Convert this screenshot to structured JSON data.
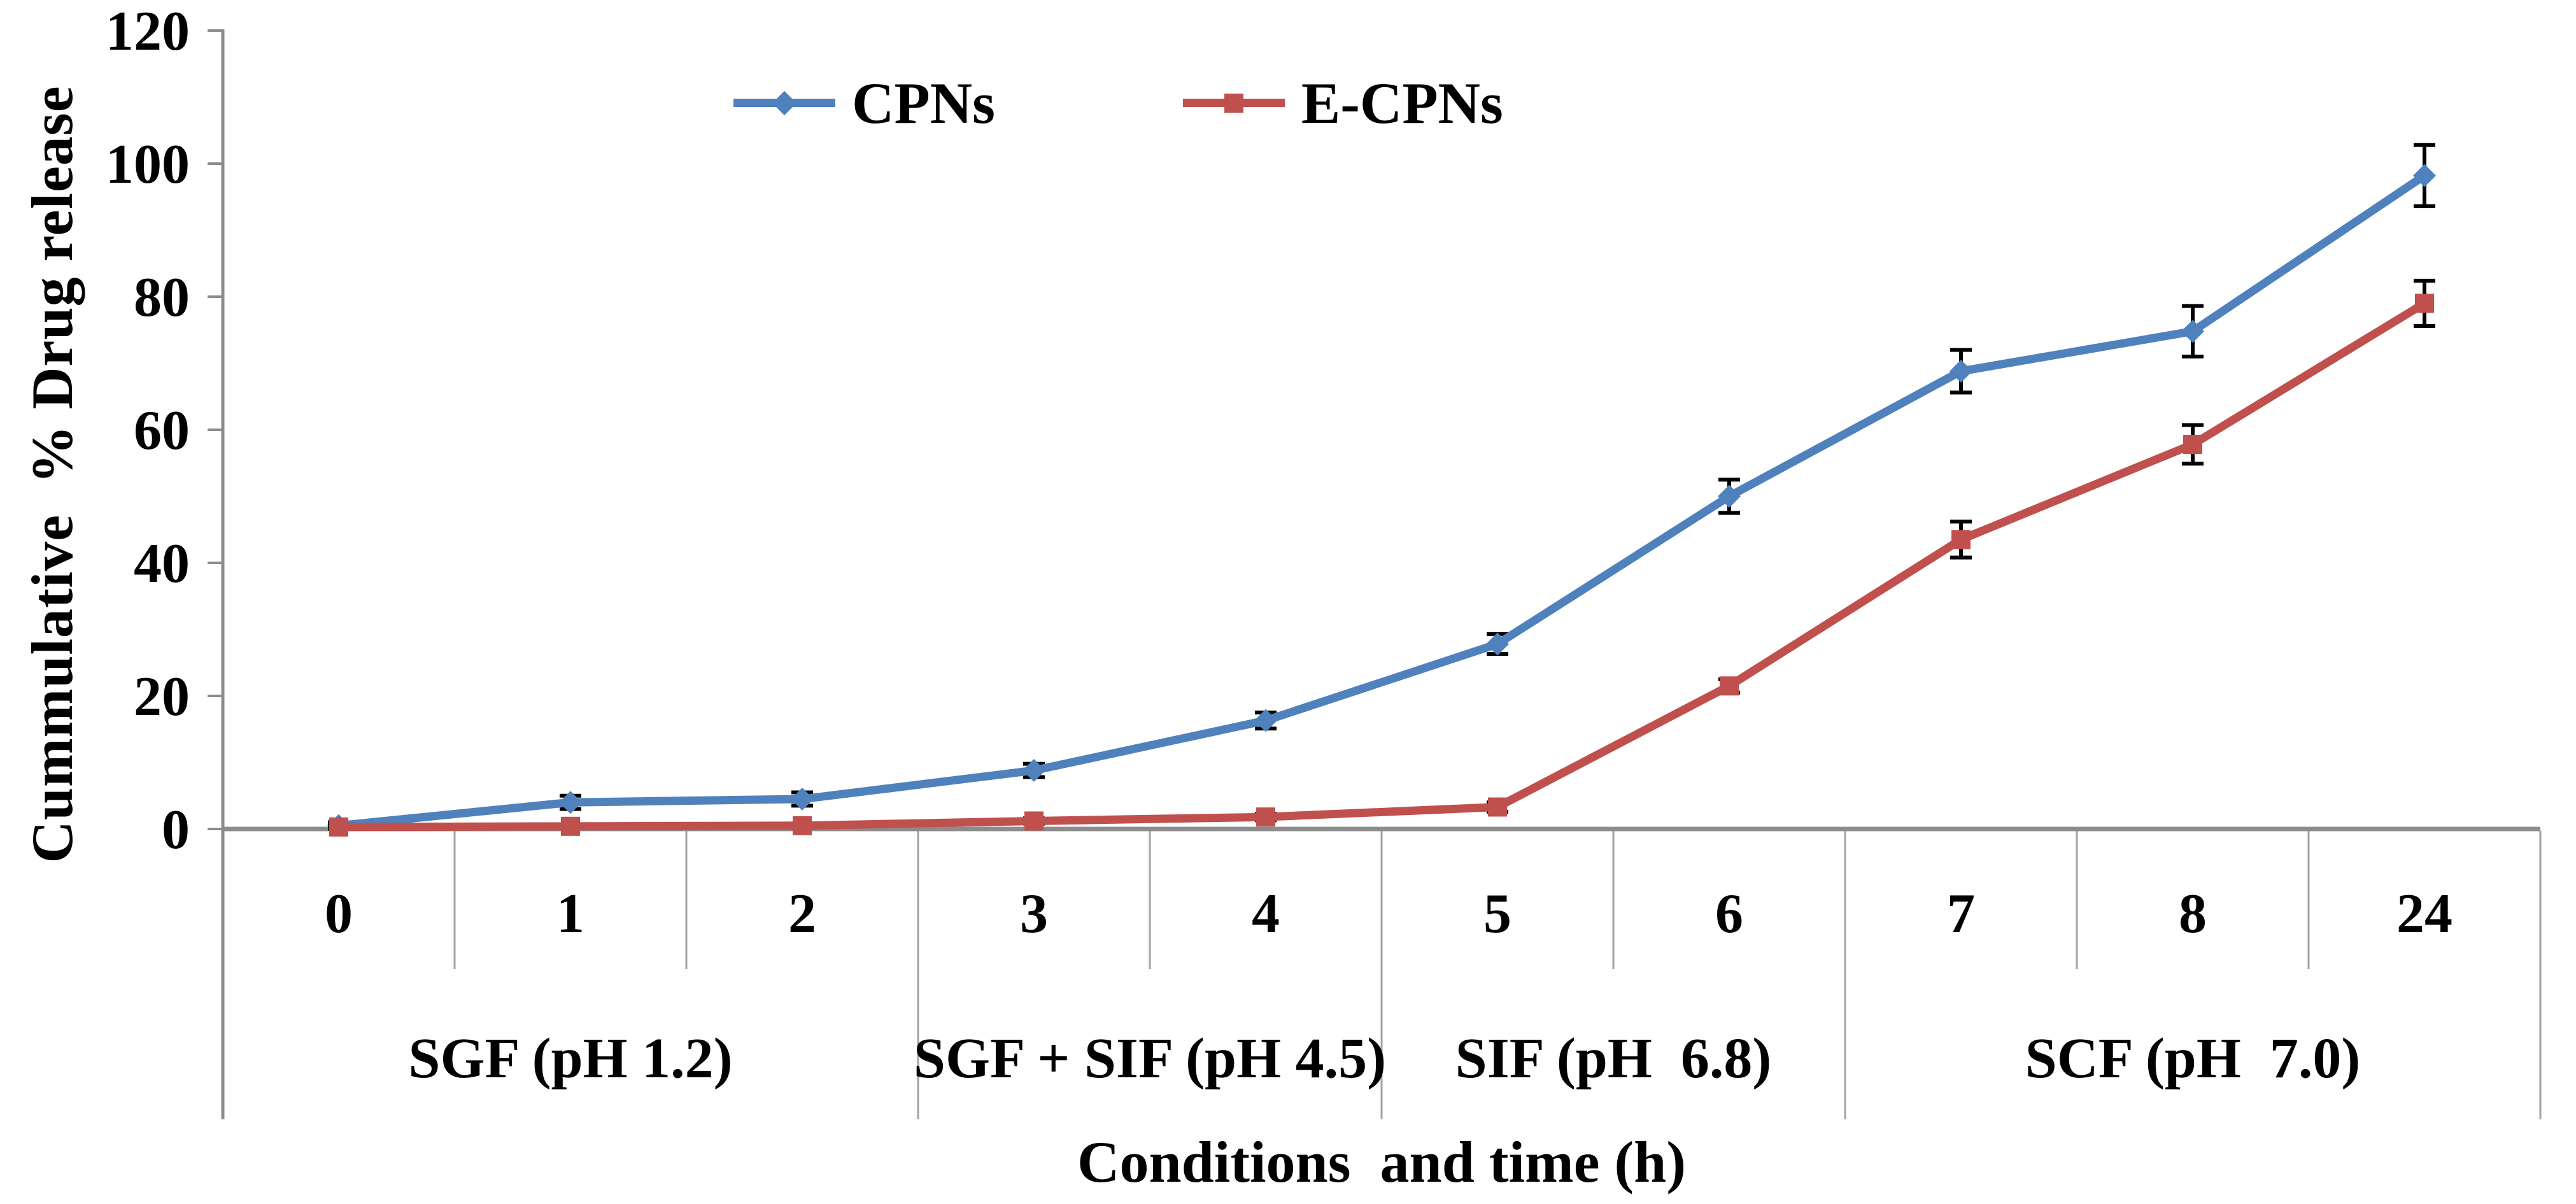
{
  "figure": {
    "background": "#ffffff"
  },
  "style": {
    "axis_color": "#8C8C8C",
    "separator_color": "#A3A3A3",
    "error_bar_color": "#000000",
    "text_color": "#000000"
  },
  "chart_data": {
    "type": "line",
    "title": "",
    "xlabel": "Conditions  and time (h)",
    "ylabel": "Cummulative  % Drug release",
    "categories": [
      "0",
      "1",
      "2",
      "3",
      "4",
      "5",
      "6",
      "7",
      "8",
      "24"
    ],
    "condition_groups": [
      {
        "label": "SGF (pH 1.2)",
        "span": [
          0,
          2
        ]
      },
      {
        "label": "SGF + SIF (pH 4.5)",
        "span": [
          3,
          4
        ]
      },
      {
        "label": "SIF (pH  6.8)",
        "span": [
          5,
          6
        ]
      },
      {
        "label": "SCF (pH  7.0)",
        "span": [
          7,
          9
        ]
      }
    ],
    "y_axis": {
      "min": 0,
      "max": 120,
      "tick_step": 20,
      "tick_labels": [
        "0",
        "20",
        "40",
        "60",
        "80",
        "100",
        "120"
      ]
    },
    "grid": false,
    "legend": {
      "position": "top-center"
    },
    "series": [
      {
        "name": "CPNs",
        "color": "#4F81BD",
        "marker": "diamond",
        "values": [
          0.5,
          4.0,
          4.5,
          8.8,
          16.3,
          27.8,
          50.0,
          68.8,
          74.8,
          98.2
        ],
        "error": [
          0.5,
          1.0,
          1.0,
          1.0,
          1.2,
          1.5,
          2.5,
          3.2,
          3.8,
          4.6
        ]
      },
      {
        "name": "E-CPNs",
        "color": "#C0504D",
        "marker": "square",
        "values": [
          0.3,
          0.4,
          0.5,
          1.2,
          1.8,
          3.3,
          21.5,
          43.5,
          57.8,
          79.0
        ],
        "error": [
          0.3,
          0.3,
          0.3,
          0.4,
          0.5,
          0.7,
          1.0,
          2.7,
          2.9,
          3.4
        ]
      }
    ]
  }
}
